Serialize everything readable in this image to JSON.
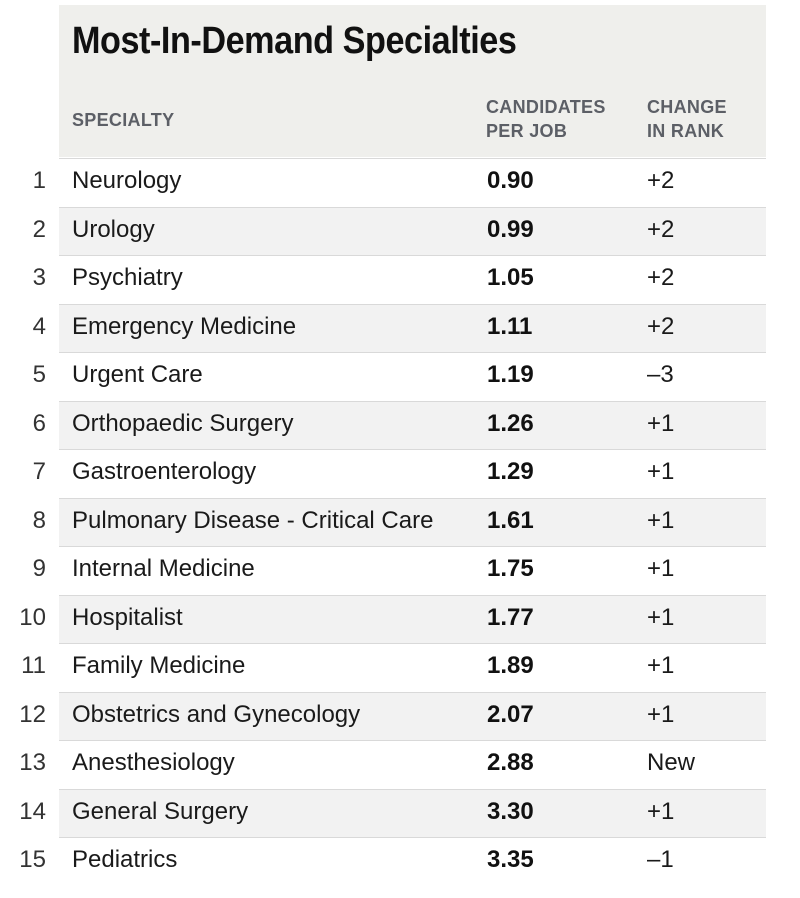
{
  "chart_data": {
    "type": "table",
    "title": "Most-In-Demand Specialties",
    "columns": {
      "specialty": "SPECIALTY",
      "candidates_line1": "CANDIDATES",
      "candidates_line2": "PER JOB",
      "change_line1": "CHANGE",
      "change_line2": "IN RANK"
    },
    "rows": [
      {
        "rank": "1",
        "specialty": "Neurology",
        "candidates_per_job": "0.90",
        "change": "+2"
      },
      {
        "rank": "2",
        "specialty": "Urology",
        "candidates_per_job": "0.99",
        "change": "+2"
      },
      {
        "rank": "3",
        "specialty": "Psychiatry",
        "candidates_per_job": "1.05",
        "change": "+2"
      },
      {
        "rank": "4",
        "specialty": "Emergency Medicine",
        "candidates_per_job": "1.11",
        "change": "+2"
      },
      {
        "rank": "5",
        "specialty": "Urgent Care",
        "candidates_per_job": "1.19",
        "change": "–3"
      },
      {
        "rank": "6",
        "specialty": "Orthopaedic Surgery",
        "candidates_per_job": "1.26",
        "change": "+1"
      },
      {
        "rank": "7",
        "specialty": "Gastroenterology",
        "candidates_per_job": "1.29",
        "change": "+1"
      },
      {
        "rank": "8",
        "specialty": "Pulmonary Disease - Critical Care",
        "candidates_per_job": "1.61",
        "change": "+1"
      },
      {
        "rank": "9",
        "specialty": "Internal Medicine",
        "candidates_per_job": "1.75",
        "change": "+1"
      },
      {
        "rank": "10",
        "specialty": "Hospitalist",
        "candidates_per_job": "1.77",
        "change": "+1"
      },
      {
        "rank": "11",
        "specialty": "Family Medicine",
        "candidates_per_job": "1.89",
        "change": "+1"
      },
      {
        "rank": "12",
        "specialty": "Obstetrics and Gynecology",
        "candidates_per_job": "2.07",
        "change": "+1"
      },
      {
        "rank": "13",
        "specialty": "Anesthesiology",
        "candidates_per_job": "2.88",
        "change": "New"
      },
      {
        "rank": "14",
        "specialty": "General Surgery",
        "candidates_per_job": "3.30",
        "change": "+1"
      },
      {
        "rank": "15",
        "specialty": "Pediatrics",
        "candidates_per_job": "3.35",
        "change": "–1"
      }
    ]
  }
}
